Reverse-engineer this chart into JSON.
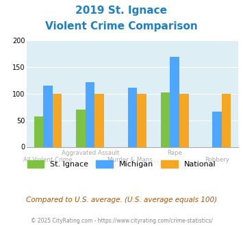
{
  "title_line1": "2019 St. Ignace",
  "title_line2": "Violent Crime Comparison",
  "title_color": "#1e7fc7",
  "categories": [
    "All Violent Crime",
    "Aggravated Assault",
    "Murder & Mans...",
    "Rape",
    "Robbery"
  ],
  "st_ignace": [
    57,
    70,
    0,
    102,
    0
  ],
  "michigan": [
    115,
    122,
    112,
    170,
    66
  ],
  "national": [
    100,
    100,
    100,
    100,
    100
  ],
  "bar_colors": {
    "st_ignace": "#7dc243",
    "michigan": "#4da6ff",
    "national": "#f5a623"
  },
  "ylim": [
    0,
    200
  ],
  "yticks": [
    0,
    50,
    100,
    150,
    200
  ],
  "bg_color": "#ddeef4",
  "footer_text": "Compared to U.S. average. (U.S. average equals 100)",
  "footer_color": "#c05000",
  "credit_text": "© 2025 CityRating.com - https://www.cityrating.com/crime-statistics/",
  "credit_color": "#888888",
  "legend_labels": [
    "St. Ignace",
    "Michigan",
    "National"
  ],
  "top_xlabel": [
    "",
    "Aggravated Assault",
    "",
    "Rape",
    ""
  ],
  "bot_xlabel": [
    "All Violent Crime",
    "",
    "Murder & Mans...",
    "",
    "Robbery"
  ]
}
